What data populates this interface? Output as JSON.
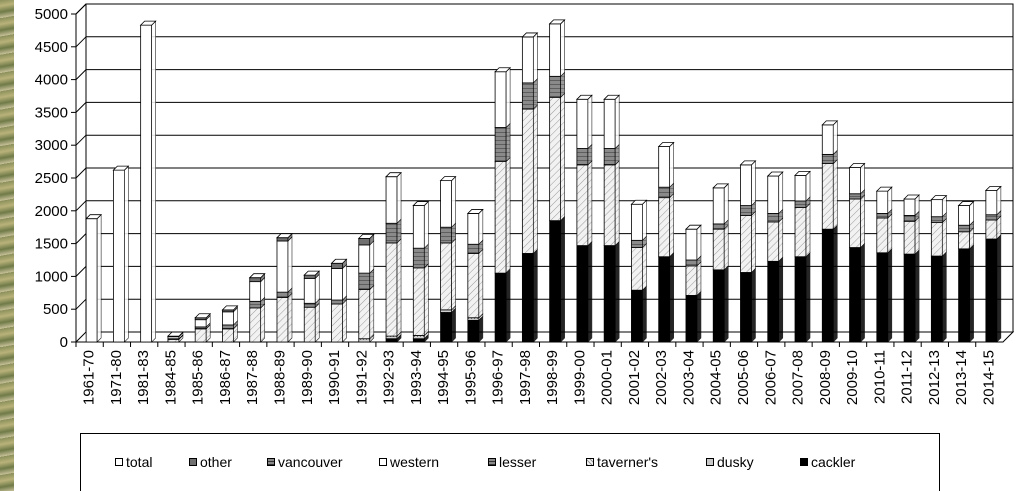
{
  "chart_data": {
    "type": "bar",
    "stacked": true,
    "title": "",
    "xlabel": "",
    "ylabel": "",
    "ylim": [
      0,
      5000
    ],
    "yticks": [
      0,
      500,
      1000,
      1500,
      2000,
      2500,
      3000,
      3500,
      4000,
      4500,
      5000
    ],
    "grid": true,
    "legend_position": "bottom",
    "categories": [
      "1961-70",
      "1971-80",
      "1981-83",
      "1984-85",
      "1985-86",
      "1986-87",
      "1987-88",
      "1988-89",
      "1989-90",
      "1990-91",
      "1991-92",
      "1992-93",
      "1993-94",
      "1994-95",
      "1995-96",
      "1996-97",
      "1997-98",
      "1998-99",
      "1999-00",
      "2000-01",
      "2001-02",
      "2002-03",
      "2003-04",
      "2004-05",
      "2005-06",
      "2006-07",
      "2007-08",
      "2008-09",
      "2009-10",
      "2010-11",
      "2011-12",
      "2012-13",
      "2013-14",
      "2014-15"
    ],
    "series": [
      {
        "name": "cackler",
        "color": "#000000",
        "values": [
          0,
          0,
          0,
          0,
          0,
          0,
          0,
          0,
          0,
          0,
          0,
          50,
          50,
          450,
          330,
          1050,
          1350,
          1850,
          1470,
          1470,
          790,
          1300,
          710,
          1100,
          1060,
          1230,
          1300,
          1720,
          1440,
          1360,
          1340,
          1310,
          1420,
          1570
        ]
      },
      {
        "name": "dusky",
        "color": "#c8c8c8",
        "values": [
          0,
          0,
          0,
          0,
          0,
          0,
          0,
          0,
          0,
          0,
          50,
          40,
          50,
          40,
          40,
          0,
          0,
          0,
          0,
          0,
          0,
          0,
          0,
          0,
          0,
          0,
          0,
          0,
          0,
          0,
          0,
          0,
          0,
          0
        ]
      },
      {
        "name": "taverner's",
        "color": "#f4f4f4",
        "values": [
          0,
          0,
          0,
          40,
          200,
          200,
          520,
          680,
          530,
          580,
          750,
          1420,
          1030,
          1020,
          980,
          1700,
          2200,
          1880,
          1230,
          1230,
          650,
          900,
          450,
          620,
          870,
          600,
          750,
          1000,
          740,
          530,
          500,
          510,
          260,
          290
        ]
      },
      {
        "name": "lesser",
        "color": "#a8a8a8",
        "values": [
          0,
          0,
          0,
          10,
          30,
          60,
          100,
          80,
          60,
          60,
          250,
          300,
          300,
          240,
          140,
          520,
          400,
          320,
          250,
          250,
          110,
          160,
          90,
          80,
          150,
          130,
          100,
          140,
          80,
          70,
          90,
          90,
          100,
          80
        ]
      },
      {
        "name": "western",
        "color": "#ffffff",
        "values": [
          0,
          0,
          0,
          30,
          110,
          200,
          300,
          780,
          380,
          480,
          430,
          710,
          650,
          710,
          470,
          850,
          700,
          800,
          750,
          750,
          550,
          620,
          470,
          550,
          620,
          570,
          390,
          450,
          400,
          340,
          250,
          260,
          300,
          370
        ]
      },
      {
        "name": "vancouver",
        "color": "#909090",
        "values": [
          0,
          0,
          0,
          0,
          0,
          0,
          0,
          0,
          0,
          0,
          0,
          0,
          0,
          0,
          0,
          0,
          0,
          0,
          0,
          0,
          0,
          0,
          0,
          0,
          0,
          0,
          0,
          0,
          0,
          0,
          0,
          0,
          0,
          0
        ]
      },
      {
        "name": "other",
        "color": "#707070",
        "values": [
          0,
          0,
          0,
          10,
          30,
          30,
          60,
          50,
          50,
          80,
          100,
          0,
          0,
          0,
          0,
          0,
          0,
          0,
          0,
          0,
          0,
          0,
          0,
          0,
          0,
          0,
          0,
          0,
          0,
          0,
          0,
          0,
          0,
          0
        ]
      },
      {
        "name": "total",
        "color": "#ffffff",
        "values": [
          1880,
          2620,
          4830,
          0,
          0,
          0,
          0,
          0,
          0,
          0,
          0,
          0,
          0,
          0,
          0,
          0,
          0,
          0,
          0,
          0,
          0,
          0,
          0,
          0,
          0,
          0,
          0,
          0,
          0,
          0,
          0,
          0,
          0,
          0
        ]
      }
    ],
    "legend_order": [
      "total",
      "other",
      "vancouver",
      "western",
      "lesser",
      "taverner's",
      "dusky",
      "cackler"
    ]
  }
}
